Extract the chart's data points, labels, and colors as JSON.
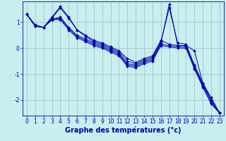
{
  "background_color": "#c8eef0",
  "grid_color": "#a0c8c8",
  "line_color": "#0000aa",
  "xlabel": "Graphe des températures (°c)",
  "xlabel_fontsize": 7,
  "tick_fontsize": 5.5,
  "xlim": [
    -0.5,
    23.5
  ],
  "ylim": [
    -2.6,
    1.8
  ],
  "yticks": [
    -2,
    -1,
    0,
    1
  ],
  "xticks": [
    0,
    1,
    2,
    3,
    4,
    5,
    6,
    7,
    8,
    9,
    10,
    11,
    12,
    13,
    14,
    15,
    16,
    17,
    18,
    19,
    20,
    21,
    22,
    23
  ],
  "series": [
    [
      1.3,
      0.9,
      0.8,
      1.2,
      1.6,
      1.2,
      0.7,
      0.5,
      0.3,
      0.2,
      0.05,
      -0.1,
      -0.4,
      -0.55,
      -0.4,
      -0.3,
      0.3,
      0.15,
      0.1,
      0.1,
      -0.1,
      -1.35,
      -1.9,
      -2.5
    ],
    [
      1.3,
      0.85,
      0.8,
      1.15,
      1.55,
      1.15,
      0.7,
      0.45,
      0.25,
      0.15,
      0.0,
      -0.15,
      -0.5,
      -0.6,
      -0.45,
      -0.35,
      0.25,
      1.55,
      0.2,
      0.15,
      -0.65,
      -1.35,
      -2.0,
      -2.5
    ],
    [
      1.3,
      0.85,
      0.8,
      1.1,
      1.2,
      0.8,
      0.5,
      0.35,
      0.2,
      0.1,
      -0.05,
      -0.2,
      -0.6,
      -0.65,
      -0.5,
      -0.4,
      0.2,
      1.7,
      0.1,
      0.1,
      -0.7,
      -1.4,
      -2.0,
      -2.5
    ],
    [
      1.3,
      0.85,
      0.8,
      1.1,
      1.15,
      0.75,
      0.45,
      0.3,
      0.15,
      0.05,
      -0.1,
      -0.25,
      -0.65,
      -0.7,
      -0.55,
      -0.45,
      0.15,
      0.1,
      0.05,
      0.05,
      -0.75,
      -1.45,
      -2.1,
      -2.5
    ],
    [
      1.3,
      0.85,
      0.8,
      1.1,
      1.1,
      0.7,
      0.4,
      0.25,
      0.1,
      0.0,
      -0.15,
      -0.3,
      -0.7,
      -0.75,
      -0.6,
      -0.5,
      0.1,
      0.05,
      0.0,
      0.0,
      -0.8,
      -1.5,
      -2.15,
      -2.5
    ]
  ]
}
